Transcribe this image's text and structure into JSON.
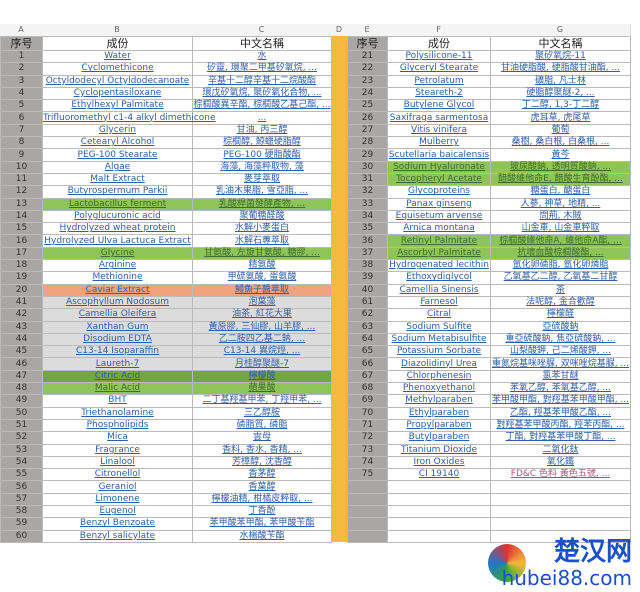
{
  "columns": [
    "A",
    "B",
    "C",
    "D",
    "E",
    "F",
    "G"
  ],
  "header": {
    "num": "序号",
    "ingredient": "成份",
    "chinese": "中文名稱"
  },
  "left_rows": [
    [
      "1",
      "Water",
      "水",
      ""
    ],
    [
      "2",
      "Cyclomethicone",
      "矽靈, 環聚二甲基矽氧烷, ...",
      ""
    ],
    [
      "3",
      "Octyldodecyl Octyldodecanoate",
      "辛基十二醇辛基十二烷酸酯",
      ""
    ],
    [
      "4",
      "Cyclopentasiloxane",
      "環戊矽氧烷, 聚矽氧化合物, ...",
      ""
    ],
    [
      "5",
      "Ethylhexyl Palmitate",
      "棕櫚酸異辛酯, 棕櫚酸乙基己酯, ...",
      ""
    ],
    [
      "6",
      "Trifluoromethyl c1-4 alkyl dimethicone",
      "...",
      ""
    ],
    [
      "7",
      "Glycerin",
      "甘油, 丙三醇",
      ""
    ],
    [
      "8",
      "Cetearyl Alcohol",
      "棕櫚醇, 鯨蠟硬脂醇",
      ""
    ],
    [
      "9",
      "PEG-100 Stearate",
      "PEG-100 硬脂酸酯",
      ""
    ],
    [
      "10",
      "Algae",
      "海藻, 海藻粹取物, 藻",
      ""
    ],
    [
      "11",
      "Malt Extract",
      "麥芽萃取",
      ""
    ],
    [
      "12",
      "Butyrospermum Parkii",
      "乳油木果脂, 雪亞脂, ...",
      ""
    ],
    [
      "13",
      "Lactobacillus ferment",
      "乳酸桿菌發酵產物, ...",
      "green"
    ],
    [
      "14",
      "Polyglucuronic acid",
      "聚葡糖醛酸",
      ""
    ],
    [
      "15",
      "Hydrolyzed wheat protein",
      "水解小麥蛋白",
      ""
    ],
    [
      "16",
      "Hydrolyzed Ulva Lactuca Extract",
      "水解石蓴萃取",
      ""
    ],
    [
      "17",
      "Glycine",
      "甘氨酸, 左旋甘氨酸, 糖膠, ...",
      "green"
    ],
    [
      "18",
      "Arginine",
      "精氨酸",
      ""
    ],
    [
      "19",
      "Methionine",
      "甲硫氨酸, 蛋氨酸",
      ""
    ],
    [
      "20",
      "Caviar Extract",
      "鱘魚子醬萃取",
      "salmon"
    ],
    [
      "41",
      "Ascophyllum Nodosum",
      "泡葉藻",
      "gray"
    ],
    [
      "42",
      "Camellia Oleifera",
      "油茶, 紅花大果",
      "gray"
    ],
    [
      "43",
      "Xanthan Gum",
      "黃原膠, 三仙膠, 山羊膠, ...",
      "gray"
    ],
    [
      "44",
      "Disodium EDTA",
      "乙二胺四乙基二鈉, ...",
      "gray"
    ],
    [
      "45",
      "C13-14 Isoparaffin",
      "C13-14 異烷烴, ...",
      "gray"
    ],
    [
      "46",
      "Laureth-7",
      "月桂醇聚醚-7",
      "gray"
    ],
    [
      "47",
      "Citric Acid",
      "檸檬酸",
      "dgreen"
    ],
    [
      "48",
      "Malic Acid",
      "蘋果酸",
      "green"
    ],
    [
      "49",
      "BHT",
      "二丁基羥基甲苯, 丁羥甲苯, ...",
      ""
    ],
    [
      "50",
      "Triethanolamine",
      "三乙醇胺",
      ""
    ],
    [
      "51",
      "Phospholipids",
      "磷脂質, 磷脂",
      ""
    ],
    [
      "52",
      "Mica",
      "雲母",
      ""
    ],
    [
      "53",
      "Fragrance",
      "香料, 香水, 香精, ...",
      ""
    ],
    [
      "54",
      "Linalool",
      "芳樟醇, 沈香醇",
      ""
    ],
    [
      "55",
      "Citronellol",
      "香茅醇",
      ""
    ],
    [
      "56",
      "Geraniol",
      "香葉醇",
      ""
    ],
    [
      "57",
      "Limonene",
      "檸檬油精, 柑橘皮粹取, ...",
      ""
    ],
    [
      "58",
      "Eugenol",
      "丁香酚",
      ""
    ],
    [
      "59",
      "Benzyl Benzoate",
      "苯甲酸苯甲酯, 苯甲酸苄酯",
      ""
    ],
    [
      "60",
      "Benzyl salicylate",
      "水楊酸苄酯",
      ""
    ]
  ],
  "right_rows": [
    [
      "21",
      "Polysilicone-11",
      "聚矽氧烷-11",
      ""
    ],
    [
      "22",
      "Glyceryl Stearate",
      "甘油硬脂酸, 硬脂酸甘油酯, ...",
      ""
    ],
    [
      "23",
      "Petrolatum",
      "礦脂, 凡士林",
      ""
    ],
    [
      "24",
      "Steareth-2",
      "硬脂醇聚醚-2, ...",
      ""
    ],
    [
      "25",
      "Butylene Glycol",
      "丁二醇, 1,3-丁二醇",
      ""
    ],
    [
      "26",
      "Saxifraga sarmentosa",
      "虎耳草, 虎尾草",
      ""
    ],
    [
      "27",
      "Vitis vinifera",
      "葡萄",
      ""
    ],
    [
      "28",
      "Mulberry",
      "桑樹, 桑白根, 白桑根, ...",
      ""
    ],
    [
      "29",
      "Scutellaria baicalensis",
      "黃芩",
      ""
    ],
    [
      "30",
      "Sodium Hyaluronate",
      "玻尿酸鈉, 透明質酸鈉, ...",
      "green"
    ],
    [
      "31",
      "Tocopheryl Acetate",
      "醋酸維他命E, 醋酸生育酚酯, ...",
      "green"
    ],
    [
      "32",
      "Glycoproteins",
      "糖蛋白, 醣蛋白",
      ""
    ],
    [
      "33",
      "Panax ginseng",
      "人蔘, 神草, 地精, ...",
      ""
    ],
    [
      "34",
      "Equisetum arvense",
      "問荊, 木賊",
      ""
    ],
    [
      "35",
      "Arnica montana",
      "山金車, 山金車粹取",
      ""
    ],
    [
      "36",
      "Retinyl Palmitate",
      "棕櫚酸維他命A, 維他命A酯, ...",
      "green"
    ],
    [
      "37",
      "Ascorbyl Palmitate",
      "抗壞血酸棕櫚酸酯, ...",
      "green"
    ],
    [
      "38",
      "Hydrogenated lecithin",
      "氫化卵磷脂, 氫化卵燐脂",
      ""
    ],
    [
      "39",
      "Ethoxydiglycol",
      "乙氧基乙二醇, 乙氧基二甘醇",
      ""
    ],
    [
      "40",
      "Camellia Sinensis",
      "茶",
      ""
    ],
    [
      "61",
      "Farnesol",
      "法呢醇, 金合歡醇",
      ""
    ],
    [
      "62",
      "Citral",
      "檸檬醛",
      ""
    ],
    [
      "63",
      "Sodium Sulfite",
      "亞硫酸鈉",
      ""
    ],
    [
      "64",
      "Sodium Metabisulfite",
      "重亞硫酸鈉, 焦亞硫酸鈉, ...",
      ""
    ],
    [
      "65",
      "Potassium Sorbate",
      "山梨酸鉀, 己二烯酸鉀, ...",
      ""
    ],
    [
      "66",
      "Diazolidinyl Urea",
      "重氮烷基咪唑脲, 双咪唑烷基脲, ...",
      ""
    ],
    [
      "67",
      "Chlorphenesin",
      "氯苯甘醚",
      ""
    ],
    [
      "68",
      "Phenoxyethanol",
      "苯氧乙醇, 苯氧基乙醇, ...",
      ""
    ],
    [
      "69",
      "Methylparaben",
      "苯甲酸甲酯, 對羥基苯甲酸甲酯, ...",
      ""
    ],
    [
      "70",
      "Ethylparaben",
      "乙酯, 羥基苯甲酸乙酯, ...",
      ""
    ],
    [
      "71",
      "Propylparaben",
      "對羥基苯甲酸丙酯, 羥苯丙酯, ...",
      ""
    ],
    [
      "72",
      "Butylparaben",
      "丁酯, 對羥基苯甲酸丁酯, ...",
      ""
    ],
    [
      "73",
      "Titanium Dioxide",
      "二氧化鈦",
      ""
    ],
    [
      "74",
      "Iron Oxides",
      "氧化鐵",
      ""
    ],
    [
      "75",
      "CI 19140",
      "FD&C 色料 黃色五號, ...",
      "pink"
    ]
  ],
  "watermark": {
    "cn": "楚汉网",
    "url": "hubei88.com"
  }
}
